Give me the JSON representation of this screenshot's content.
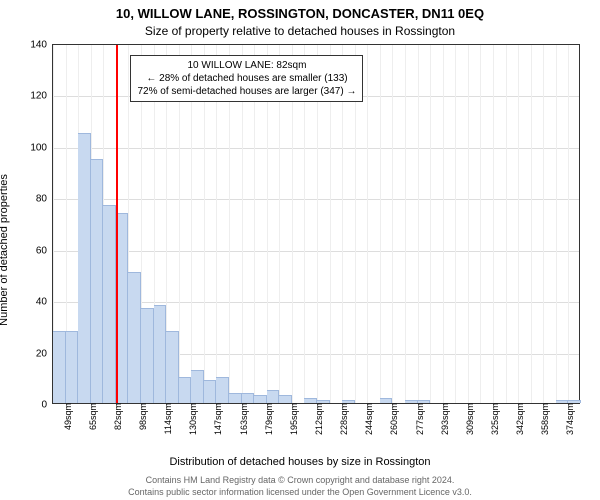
{
  "title_line1": "10, WILLOW LANE, ROSSINGTON, DONCASTER, DN11 0EQ",
  "title_line2": "Size of property relative to detached houses in Rossington",
  "ylabel": "Number of detached properties",
  "xlabel": "Distribution of detached houses by size in Rossington",
  "footer1": "Contains HM Land Registry data © Crown copyright and database right 2024.",
  "footer2": "Contains public sector information licensed under the Open Government Licence v3.0.",
  "chart": {
    "type": "histogram",
    "background_color": "#ffffff",
    "grid_color": "#dddddd",
    "bar_color": "#c8d9f0",
    "bar_border_color": "#9fb8dd",
    "marker_color": "#ff0000",
    "axis_color": "#333333",
    "ylim": [
      0,
      140
    ],
    "ytick_step": 20,
    "yticks": [
      0,
      20,
      40,
      60,
      80,
      100,
      120,
      140
    ],
    "x_start": 41,
    "x_end": 382,
    "x_tick_step": 16.3,
    "x_ticks": [
      "49sqm",
      "65sqm",
      "82sqm",
      "98sqm",
      "114sqm",
      "130sqm",
      "147sqm",
      "163sqm",
      "179sqm",
      "195sqm",
      "212sqm",
      "228sqm",
      "244sqm",
      "260sqm",
      "277sqm",
      "293sqm",
      "309sqm",
      "325sqm",
      "342sqm",
      "358sqm",
      "374sqm"
    ],
    "bars": [
      28,
      28,
      105,
      95,
      77,
      74,
      51,
      37,
      38,
      28,
      10,
      13,
      9,
      10,
      4,
      4,
      3,
      5,
      3,
      0,
      2,
      1,
      0,
      1,
      0,
      0,
      2,
      0,
      1,
      1,
      0,
      0,
      0,
      0,
      0,
      0,
      0,
      0,
      0,
      0,
      1,
      1
    ],
    "marker_x_value": 82,
    "callout": {
      "line1": "10 WILLOW LANE: 82sqm",
      "line2": "← 28% of detached houses are smaller (133)",
      "line3": "72% of semi-detached houses are larger (347) →"
    },
    "label_fontsize": 11,
    "tick_fontsize": 10,
    "bar_width_ratio": 1.0
  }
}
